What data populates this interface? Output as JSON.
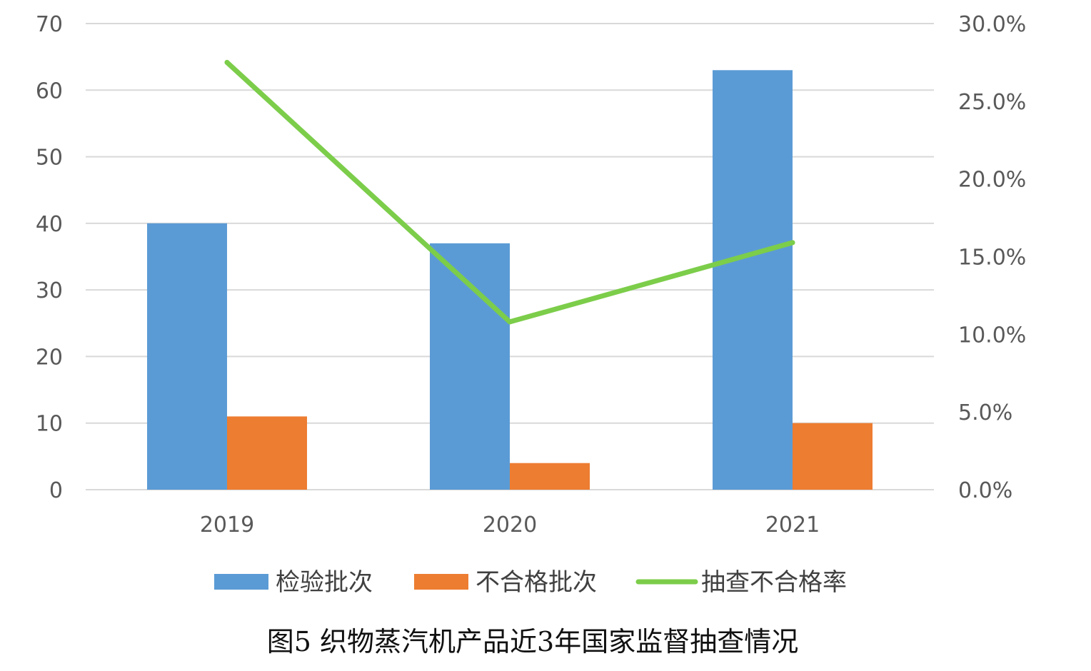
{
  "chart_data": {
    "type": "bar",
    "categories": [
      "2019",
      "2020",
      "2021"
    ],
    "series": [
      {
        "name": "检验批次",
        "kind": "bar",
        "axis": "left",
        "color": "#5b9bd5",
        "values": [
          40,
          37,
          63
        ]
      },
      {
        "name": "不合格批次",
        "kind": "bar",
        "axis": "left",
        "color": "#ed7d31",
        "values": [
          11,
          4,
          10
        ]
      },
      {
        "name": "抽查不合格率",
        "kind": "line",
        "axis": "right",
        "color": "#7ccd4a",
        "values": [
          0.275,
          0.108,
          0.159
        ]
      }
    ],
    "y_left": {
      "min": 0,
      "max": 70,
      "ticks": [
        0,
        10,
        20,
        30,
        40,
        50,
        60,
        70
      ],
      "tick_labels": [
        "0",
        "10",
        "20",
        "30",
        "40",
        "50",
        "60",
        "70"
      ]
    },
    "y_right": {
      "min": 0,
      "max": 0.3,
      "ticks": [
        0,
        0.05,
        0.1,
        0.15,
        0.2,
        0.25,
        0.3
      ],
      "tick_labels": [
        "0.0%",
        "5.0%",
        "10.0%",
        "15.0%",
        "20.0%",
        "25.0%",
        "30.0%"
      ]
    },
    "grid": true,
    "legend_position": "bottom",
    "title": "图5 织物蒸汽机产品近3年国家监督抽查情况",
    "colors": {
      "grid": "#d9d9d9",
      "tick_text": "#595959"
    }
  }
}
